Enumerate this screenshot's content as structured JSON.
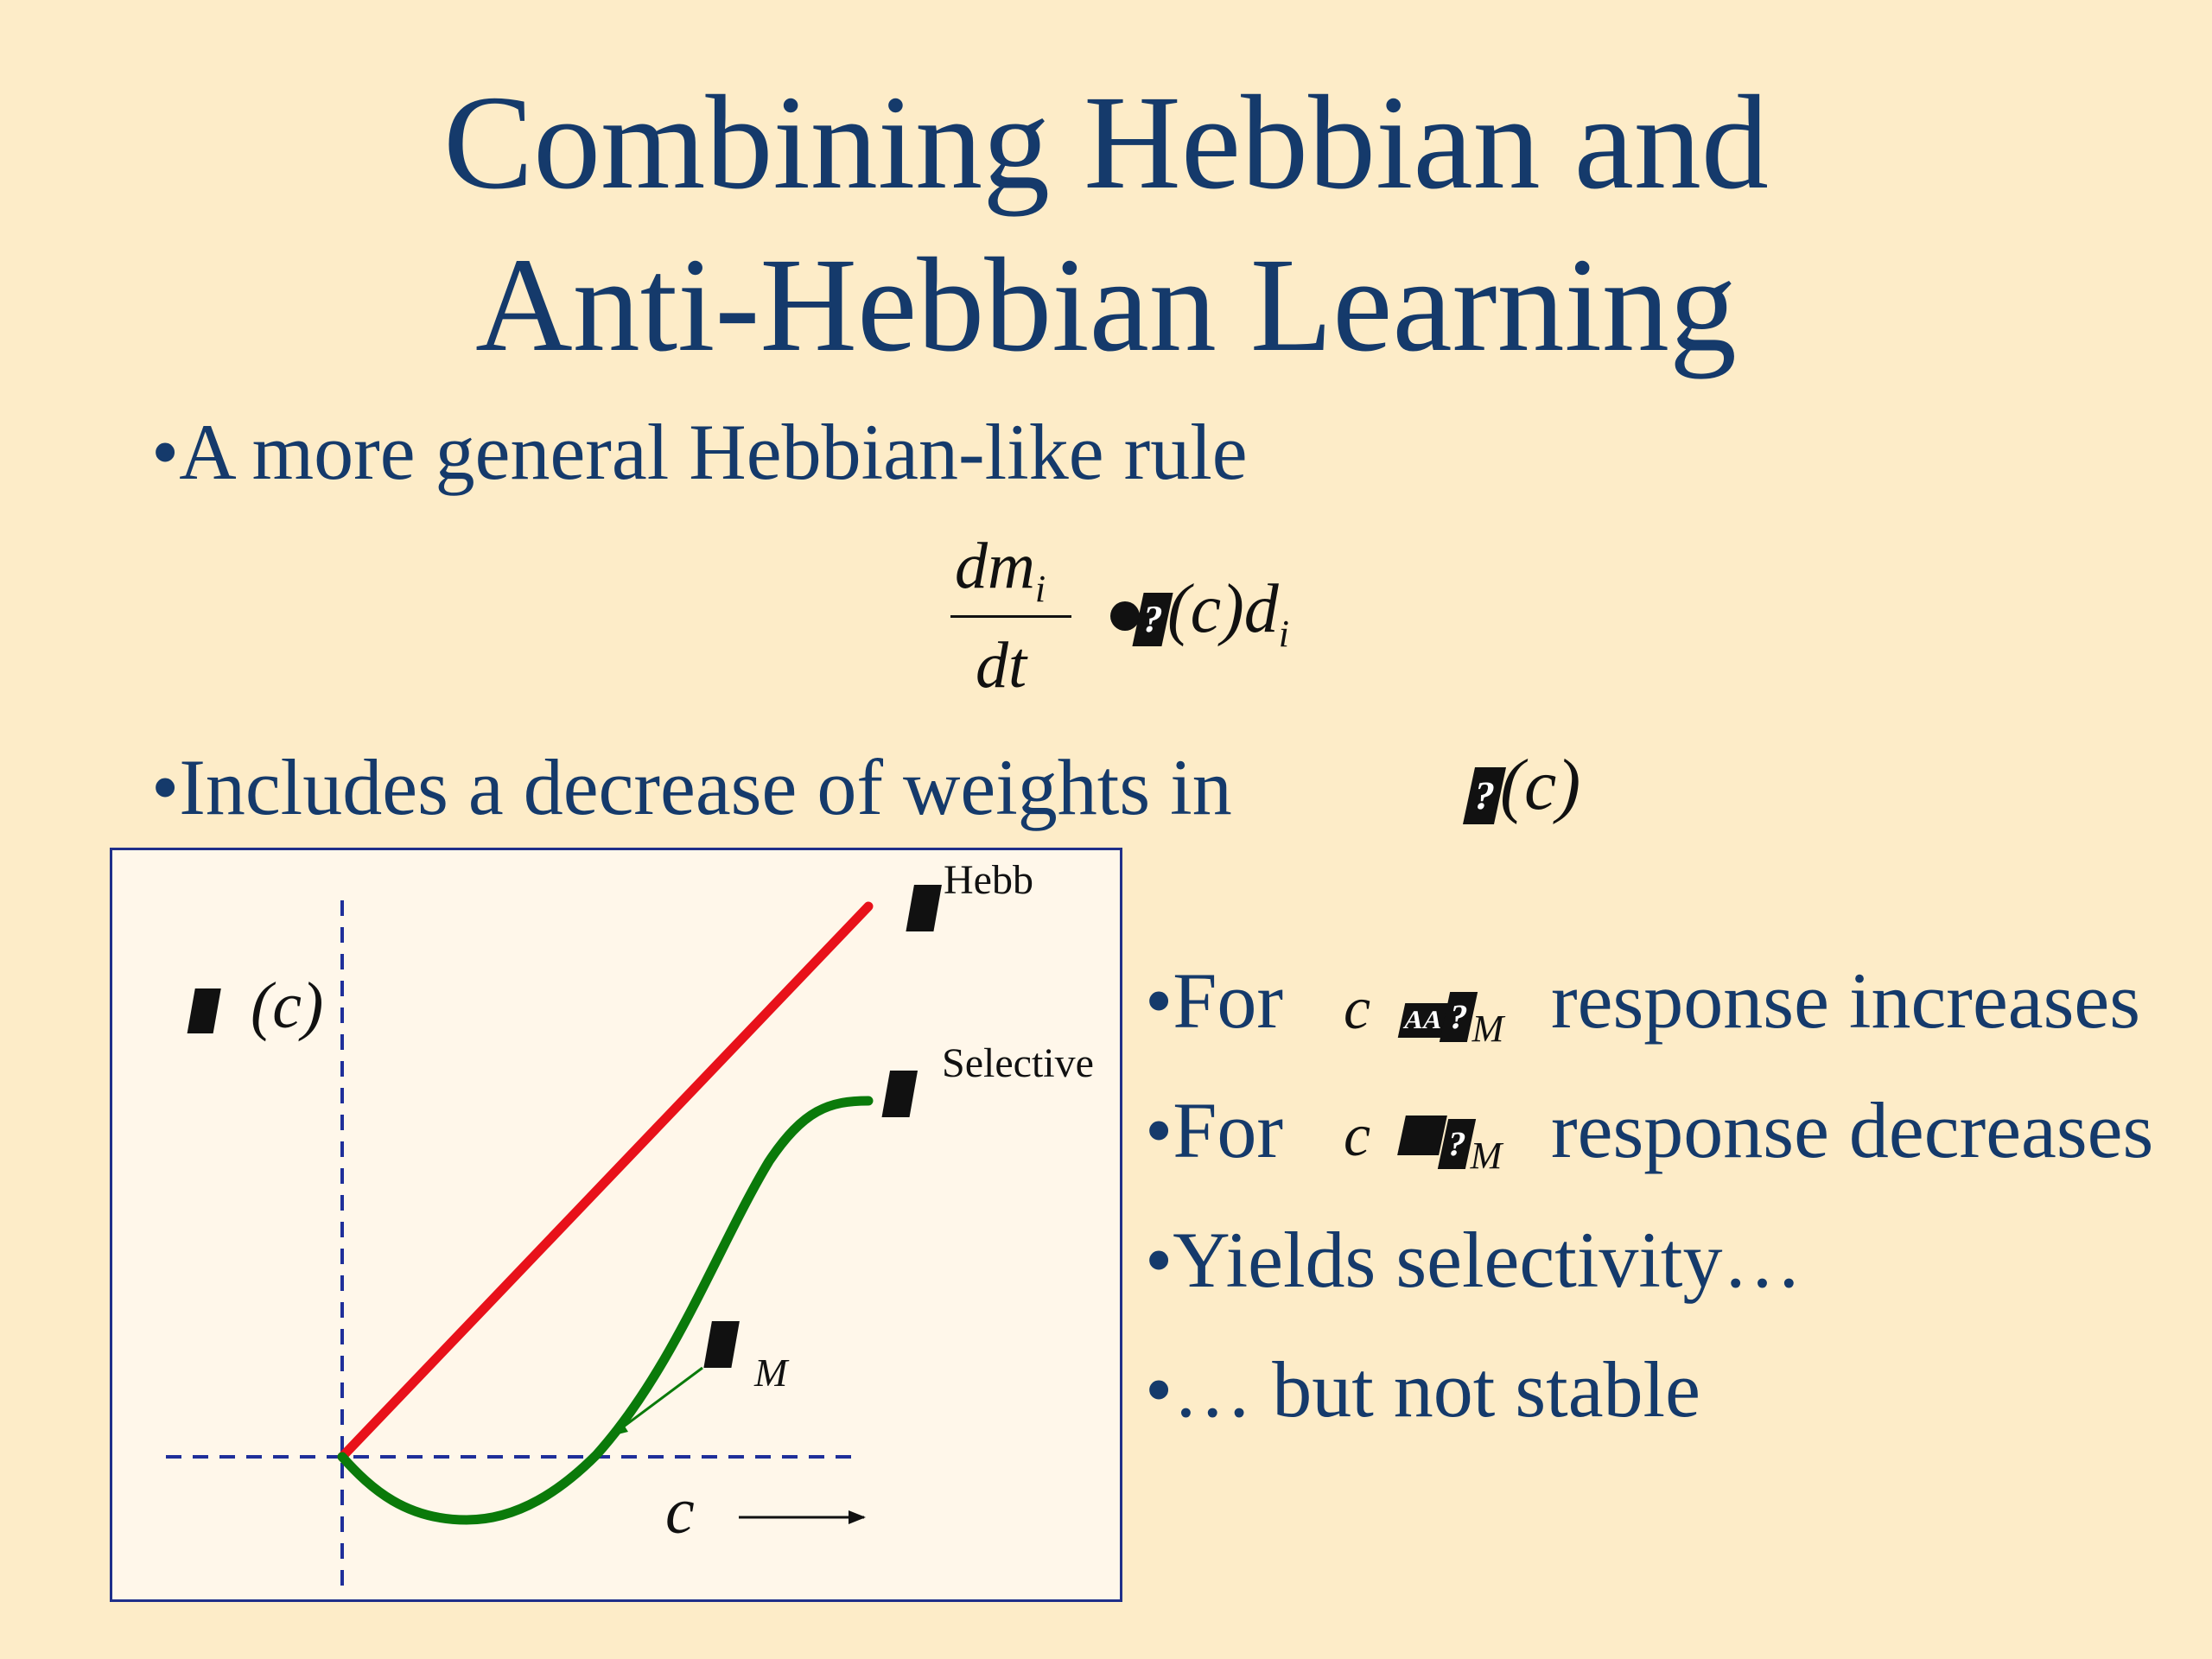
{
  "slide": {
    "title_line1": "Combining Hebbian and",
    "title_line2": "Anti-Hebbian Learning",
    "bullet1": "•A more general Hebbian-like rule",
    "bullet2": "•Includes a decrease of weights in",
    "right_bullets": {
      "for_label_1": "•For",
      "increases": "response increases",
      "for_label_2": "•For",
      "decreases": "response decreases",
      "yields": "•Yields selectivity…",
      "not_stable": "•… but not stable"
    }
  },
  "equation": {
    "numerator": "dm",
    "numerator_sub": "i",
    "denominator": "dt",
    "symbol": "?",
    "arg": "(c)",
    "tail": "d",
    "tail_sub": "i"
  },
  "inline_math": {
    "phi_c": "(c)",
    "c": "c",
    "sub_m": "M",
    "glyph": "?"
  },
  "diagram": {
    "y_axis_label": "(c)",
    "x_axis_label": "c",
    "hebb_label": "Hebb",
    "selective_label": "Selective",
    "theta_sub": "M",
    "glyph": "?",
    "colors": {
      "hebb": "#e8111a",
      "selective": "#0a7a0a",
      "axes": "#1f2f9a"
    }
  }
}
